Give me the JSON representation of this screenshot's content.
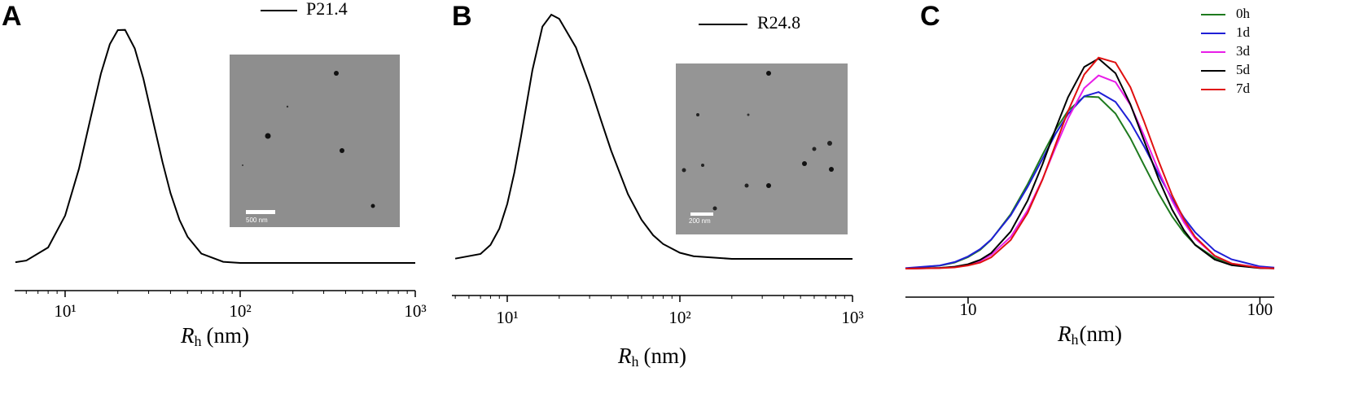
{
  "chart_data": [
    {
      "type": "line",
      "label": "A",
      "xscale": "log",
      "xlim": [
        5.15,
        1000
      ],
      "xticks": [
        {
          "value": 10,
          "label": "10¹"
        },
        {
          "value": 100,
          "label": "10²"
        },
        {
          "value": 1000,
          "label": "10³"
        }
      ],
      "minor_xticks": [
        6,
        7,
        8,
        9,
        20,
        30,
        40,
        50,
        60,
        70,
        80,
        90,
        200,
        300,
        400,
        500,
        600,
        700,
        800,
        900
      ],
      "ylim": [
        0,
        100
      ],
      "xlabel": {
        "symbol": "R",
        "subscript": "h",
        "unit": "(nm)"
      },
      "inset_scale_label": "500 nm",
      "x": [
        5.2,
        6,
        8,
        10,
        12,
        14,
        16,
        18,
        20,
        22,
        25,
        28,
        32,
        36,
        40,
        45,
        50,
        60,
        80,
        100,
        200,
        500,
        1000
      ],
      "series": [
        {
          "name": "P21.4",
          "color": "#000000",
          "values": [
            0.3,
            1.0,
            6.6,
            20.2,
            40.2,
            62,
            80.7,
            93.3,
            99.3,
            99.4,
            91.5,
            78.6,
            59.6,
            43,
            29.8,
            18.4,
            11.2,
            4.0,
            0.5,
            0,
            0,
            0,
            0
          ]
        }
      ]
    },
    {
      "type": "line",
      "label": "B",
      "xscale": "log",
      "xlim": [
        4.78,
        1000
      ],
      "xticks": [
        {
          "value": 10,
          "label": "10¹"
        },
        {
          "value": 100,
          "label": "10²"
        },
        {
          "value": 1000,
          "label": "10³"
        }
      ],
      "minor_xticks": [
        5,
        6,
        7,
        8,
        9,
        20,
        30,
        40,
        50,
        60,
        70,
        80,
        90,
        200,
        300,
        400,
        500,
        600,
        700,
        800,
        900
      ],
      "ylim": [
        0,
        100
      ],
      "xlabel": {
        "symbol": "R",
        "subscript": "h",
        "unit": "(nm)"
      },
      "inset_scale_label": "200 nm",
      "x": [
        5,
        7,
        8,
        9,
        10,
        11,
        12,
        14,
        16,
        18,
        20,
        25,
        30,
        35,
        40,
        50,
        60,
        70,
        80,
        100,
        120,
        200,
        500,
        1000
      ],
      "series": [
        {
          "name": "R24.8",
          "color": "#000000",
          "values": [
            0.1,
            2.0,
            5.7,
            12.4,
            22.5,
            35.3,
            49.9,
            77.3,
            95.1,
            100,
            98.3,
            86.6,
            71.2,
            56.6,
            44.3,
            26.5,
            16,
            9.7,
            6.1,
            2.5,
            1.1,
            0,
            0,
            0
          ]
        }
      ]
    },
    {
      "type": "line",
      "label": "C",
      "xscale": "log",
      "xlim": [
        6.1,
        112
      ],
      "xticks": [
        10,
        100
      ],
      "ylim": [
        0,
        100
      ],
      "xlabel": {
        "symbol": "R",
        "subscript": "h",
        "unit": "(nm)"
      },
      "x": [
        6.1,
        8,
        9,
        10,
        11,
        12,
        14,
        16,
        18,
        20,
        22,
        25,
        28,
        32,
        36,
        40,
        45,
        50,
        55,
        60,
        70,
        80,
        100,
        112
      ],
      "series": [
        {
          "name": "0h",
          "color": "#1e7a1e",
          "values": [
            0.1,
            1.2,
            2.5,
            4.7,
            7.7,
            11.8,
            22.3,
            34.6,
            46.7,
            57.1,
            64.6,
            70.5,
            70.2,
            63.5,
            53.4,
            42.6,
            30.7,
            21.4,
            14.6,
            9.8,
            4.4,
            1.9,
            0.4,
            0.2
          ]
        },
        {
          "name": "1d",
          "color": "#1f1fd6",
          "values": [
            0.2,
            1.3,
            2.7,
            5.0,
            8.0,
            11.9,
            21.8,
            33.5,
            45.0,
            55.4,
            63.3,
            70.6,
            72.3,
            68.3,
            59.9,
            50.3,
            38.5,
            28.6,
            20.7,
            14.9,
            7.4,
            3.8,
            0.9,
            0.4
          ]
        },
        {
          "name": "3d",
          "color": "#e81ee8",
          "values": [
            0,
            0.3,
            0.7,
            1.6,
            3.2,
            5.6,
            13,
            23.9,
            36.7,
            49.9,
            61.5,
            73.9,
            79.1,
            76.4,
            67,
            54.8,
            40,
            27.8,
            18.8,
            12.4,
            5.2,
            2.1,
            0.4,
            0.1
          ]
        },
        {
          "name": "5d",
          "color": "#000000",
          "values": [
            0,
            0.3,
            0.8,
            1.8,
            3.6,
            6.4,
            15.2,
            27.9,
            42.8,
            57.6,
            70.2,
            82.6,
            86,
            80,
            67.3,
            52.8,
            36.6,
            24.2,
            15.6,
            9.7,
            3.7,
            1.4,
            0.2,
            0.1
          ]
        },
        {
          "name": "7d",
          "color": "#e01010",
          "values": [
            0,
            0.2,
            0.5,
            1.3,
            2.5,
            4.6,
            11.7,
            22.8,
            36.5,
            51.2,
            64.5,
            79.5,
            86.4,
            84.4,
            74.3,
            60.6,
            43.9,
            30.1,
            20,
            13,
            5.3,
            2.1,
            0.3,
            0.1
          ]
        }
      ]
    }
  ]
}
